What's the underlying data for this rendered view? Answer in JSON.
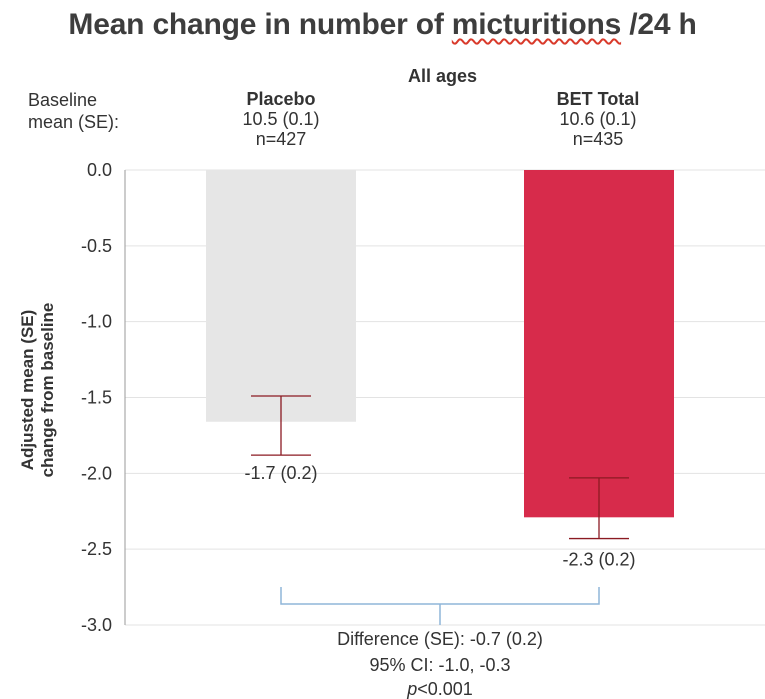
{
  "title_pre": "Mean change in number of ",
  "title_squiggle": "micturitions",
  "title_post": " /24 h",
  "baseline_label_1": "Baseline",
  "baseline_label_2": "mean (SE):",
  "groups": [
    {
      "name": "Placebo",
      "baseline": "10.5 (0.1)",
      "n": "n=427"
    },
    {
      "name": "BET Total",
      "baseline": "10.6 (0.1)",
      "n": "n=435"
    }
  ],
  "ylabel_line1": "Adjusted mean (SE)",
  "ylabel_line2": "change from baseline",
  "difference": "Difference (SE): -0.7 (0.2)",
  "ci": "95% CI: -1.0, -0.3",
  "p_prefix": "p",
  "p_rest": "<0.001",
  "colors": {
    "placebo": "#e6e6e6",
    "bet": "#d72b4b",
    "error": "#8b1a22",
    "bracket": "#8fb5d9"
  },
  "chart_data": {
    "type": "bar",
    "title": "Mean change in number of micturitions /24 h",
    "subtitle": "All ages",
    "categories": [
      "Placebo",
      "BET Total"
    ],
    "values": [
      -1.66,
      -2.29
    ],
    "error_bars": [
      {
        "lower": -1.88,
        "upper": -1.49
      },
      {
        "lower": -2.43,
        "upper": -2.03
      }
    ],
    "data_labels": [
      "-1.7 (0.2)",
      "-2.3 (0.2)"
    ],
    "ylabel": "Adjusted mean (SE) change from baseline",
    "ylim": [
      -3.0,
      0.0
    ],
    "yticks": [
      0.0,
      -0.5,
      -1.0,
      -1.5,
      -2.0,
      -2.5,
      -3.0
    ],
    "ytick_labels": [
      "0.0",
      "-0.5",
      "-1.0",
      "-1.5",
      "-2.0",
      "-2.5",
      "-3.0"
    ],
    "grid": true
  }
}
